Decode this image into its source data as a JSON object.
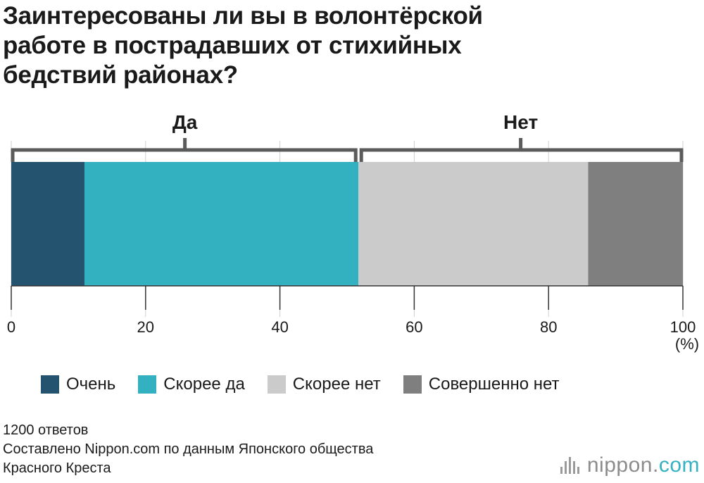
{
  "title_lines": [
    "Заинтересованы ли вы в волонтёрской",
    "работе в пострадавших от стихийных",
    "бедствий районах?"
  ],
  "groups": [
    {
      "label": "Да",
      "from": 0,
      "to": 51.7
    },
    {
      "label": "Нет",
      "from": 51.7,
      "to": 100
    }
  ],
  "colors": {
    "Очень": "#23536f",
    "Скорее да": "#34b1c0",
    "Скорее нет": "#cbcbcb",
    "Совершенно нет": "#7f7f7f",
    "bracket": "#5b5b5b",
    "grid": "#d0d0d0"
  },
  "chart_data": {
    "type": "bar",
    "orientation": "horizontal-stacked",
    "unit": "(%)",
    "xlim": [
      0,
      100
    ],
    "xticks": [
      "0",
      "20",
      "40",
      "60",
      "80",
      "100"
    ],
    "series": [
      {
        "name": "Очень",
        "values": [
          10.9
        ]
      },
      {
        "name": "Скорее да",
        "values": [
          40.8
        ]
      },
      {
        "name": "Скорее нет",
        "values": [
          34.2
        ]
      },
      {
        "name": "Совершенно нет",
        "values": [
          14.1
        ]
      }
    ],
    "grid": true,
    "legend_position": "bottom"
  },
  "notes": [
    "1200 ответов",
    "Составлено Nippon.com по данным Японского общества",
    "Красного Креста"
  ],
  "logo": {
    "text": "nippon.",
    "suffix": "com",
    "icon": "nippon-logo-bars-icon"
  }
}
